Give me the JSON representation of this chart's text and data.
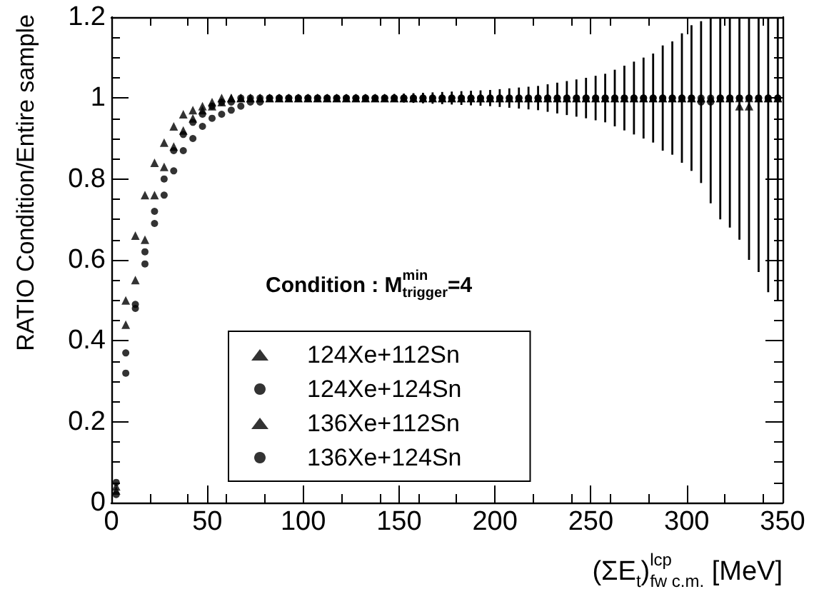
{
  "chart_data": {
    "type": "scatter",
    "xlabel": "(ΣE$_{t}$)$^{lcp}$$_{fw c.m.}$ [MeV]",
    "ylabel": "RATIO Condition/Entire sample",
    "annotations": [
      "Condition : M$^{min}$$_{trigger}$=4"
    ],
    "xlim": [
      0,
      350
    ],
    "xticks": [
      0,
      50,
      100,
      150,
      200,
      250,
      300,
      350
    ],
    "ylim": [
      0,
      1.2
    ],
    "yticks": [
      0,
      0.2,
      0.4,
      0.6,
      0.8,
      1,
      1.2
    ],
    "legend": "bottom",
    "grid": false,
    "x": [
      2.5,
      7.5,
      12.5,
      17.5,
      22.5,
      27.5,
      32.5,
      37.5,
      42.5,
      47.5,
      52.5,
      57.5,
      62.5,
      67.5,
      72.5,
      77.5,
      82.5,
      87.5,
      92.5,
      97.5,
      102.5,
      107.5,
      112.5,
      117.5,
      122.5,
      127.5,
      132.5,
      137.5,
      142.5,
      147.5,
      152.5,
      157.5,
      162.5,
      167.5,
      172.5,
      177.5,
      182.5,
      187.5,
      192.5,
      197.5,
      202.5,
      207.5,
      212.5,
      217.5,
      222.5,
      227.5,
      232.5,
      237.5,
      242.5,
      247.5,
      252.5,
      257.5,
      262.5,
      267.5,
      272.5,
      277.5,
      282.5,
      287.5,
      292.5,
      297.5,
      302.5,
      307.5,
      312.5,
      317.5,
      322.5,
      327.5,
      332.5,
      337.5,
      342.5,
      347.5
    ],
    "series": [
      {
        "name": "124Xe+112Sn",
        "color": "#000000",
        "marker": "triangle",
        "values": [
          0.04,
          0.5,
          0.66,
          0.76,
          0.84,
          0.89,
          0.93,
          0.96,
          0.97,
          0.98,
          0.99,
          1,
          1,
          1,
          1,
          1,
          1,
          1,
          1,
          1,
          1,
          1,
          1,
          1,
          1,
          1,
          1,
          1,
          1,
          1,
          1,
          1,
          1,
          1,
          1,
          1,
          1,
          1,
          1,
          1,
          1,
          1,
          1,
          1,
          1,
          1,
          1,
          1,
          1,
          1,
          1,
          1,
          1,
          1,
          1,
          1,
          1,
          1,
          1,
          1,
          1,
          1,
          1,
          1,
          1,
          1,
          1,
          1,
          1,
          1
        ]
      },
      {
        "name": "124Xe+124Sn",
        "color": "#000000",
        "marker": "circle",
        "values": [
          0.02,
          0.32,
          0.49,
          0.62,
          0.72,
          0.8,
          0.87,
          0.91,
          0.94,
          0.96,
          0.98,
          0.99,
          0.99,
          1,
          1,
          1,
          1,
          1,
          1,
          1,
          1,
          1,
          1,
          1,
          1,
          1,
          1,
          1,
          1,
          1,
          1,
          1,
          1,
          1,
          1,
          1,
          1,
          1,
          1,
          1,
          1,
          1,
          1,
          1,
          1,
          1,
          1,
          1,
          1,
          1,
          1,
          1,
          1,
          1,
          1,
          1,
          1,
          1,
          1,
          1,
          1,
          1,
          1,
          1,
          1,
          1,
          1,
          1,
          1,
          1
        ]
      },
      {
        "name": "136Xe+112Sn",
        "color": "#000000",
        "marker": "triangle",
        "values": [
          0.03,
          0.44,
          0.55,
          0.65,
          0.76,
          0.83,
          0.88,
          0.92,
          0.95,
          0.97,
          0.98,
          0.99,
          1,
          1,
          1,
          1,
          1,
          1,
          1,
          1,
          1,
          1,
          1,
          1,
          1,
          1,
          1,
          1,
          1,
          1,
          1,
          1,
          1,
          1,
          1,
          1,
          1,
          1,
          1,
          1,
          1,
          1,
          1,
          1,
          1,
          1,
          1,
          1,
          1,
          1,
          1,
          1,
          1,
          1,
          1,
          1,
          1,
          1,
          1,
          1,
          1,
          1,
          1,
          1,
          1,
          0.98,
          0.98,
          1,
          1,
          1
        ]
      },
      {
        "name": "136Xe+124Sn",
        "color": "#000000",
        "marker": "circle",
        "values": [
          0.05,
          0.37,
          0.48,
          0.59,
          0.69,
          0.76,
          0.82,
          0.87,
          0.9,
          0.93,
          0.95,
          0.96,
          0.97,
          0.98,
          0.99,
          0.99,
          1,
          1,
          1,
          1,
          1,
          1,
          1,
          1,
          1,
          1,
          1,
          1,
          1,
          1,
          1,
          1,
          1,
          1,
          1,
          1,
          1,
          1,
          1,
          1,
          1,
          1,
          1,
          1,
          1,
          1,
          1,
          1,
          1,
          1,
          1,
          1,
          1,
          1,
          1,
          1,
          1,
          1,
          1,
          1,
          1,
          0.99,
          0.99,
          1,
          1,
          1,
          1,
          1,
          1,
          1
        ],
        "errors": [
          null,
          null,
          null,
          null,
          null,
          null,
          null,
          null,
          null,
          null,
          null,
          null,
          null,
          null,
          null,
          null,
          null,
          null,
          null,
          null,
          null,
          null,
          null,
          null,
          null,
          0.005,
          0.006,
          0.007,
          0.008,
          0.01,
          0.011,
          0.012,
          0.013,
          0.014,
          0.015,
          0.016,
          0.017,
          0.018,
          0.019,
          0.02,
          0.022,
          0.024,
          0.026,
          0.028,
          0.03,
          0.034,
          0.038,
          0.042,
          0.046,
          0.05,
          0.055,
          0.06,
          0.07,
          0.08,
          0.09,
          0.1,
          0.11,
          0.13,
          0.14,
          0.16,
          0.18,
          0.2,
          [
            0.74,
            1.2
          ],
          [
            0.7,
            1.2
          ],
          [
            0.68,
            1.2
          ],
          [
            0.65,
            1.2
          ],
          [
            0.6,
            1.2
          ],
          [
            0.57,
            1.2
          ],
          [
            0.52,
            1.2
          ],
          [
            0.5,
            1.2
          ]
        ]
      }
    ]
  }
}
